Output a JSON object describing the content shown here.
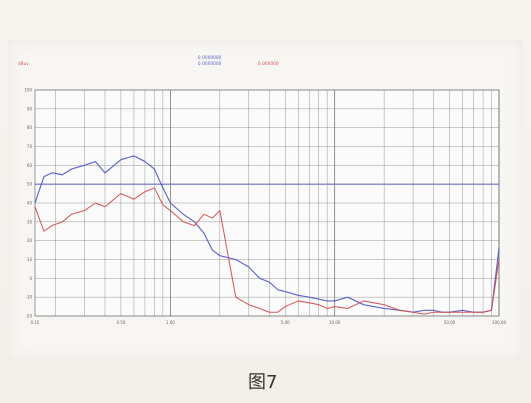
{
  "caption": "图7",
  "legend": {
    "unit": "dBuv",
    "entries": [
      "0.0000000",
      "0.0000000",
      "0.000000"
    ]
  },
  "colors": {
    "blue": "#4f58c8",
    "red": "#d24b4b",
    "grid": "#6f6f6f",
    "reference": "#6b6fc8"
  },
  "chart_data": {
    "type": "line",
    "title": "",
    "xlabel": "",
    "ylabel": "",
    "x_scale": "log",
    "xlim": [
      0.15,
      100
    ],
    "ylim": [
      -20,
      100
    ],
    "x_ticks": [
      "0.15",
      "0.50",
      "1.00",
      "5.00",
      "10.00",
      "50.00",
      "100.00"
    ],
    "y_ticks": [
      "100",
      "90",
      "80",
      "70",
      "60",
      "50",
      "40",
      "30",
      "20",
      "10",
      "0",
      "-10",
      "-20"
    ],
    "reference_line": 50,
    "series": [
      {
        "color": "#4f58c8",
        "x": [
          0.15,
          0.17,
          0.19,
          0.22,
          0.25,
          0.3,
          0.35,
          0.4,
          0.5,
          0.6,
          0.7,
          0.8,
          0.9,
          1.0,
          1.2,
          1.4,
          1.6,
          1.8,
          2.0,
          2.5,
          3.0,
          3.5,
          4.0,
          4.5,
          5.0,
          6.0,
          7.0,
          8.0,
          9.0,
          10.0,
          12.0,
          15.0,
          20.0,
          25.0,
          30.0,
          35.0,
          40.0,
          45.0,
          50.0,
          60.0,
          70.0,
          80.0,
          90.0,
          100.0
        ],
        "y": [
          40,
          54,
          56,
          55,
          58,
          60,
          62,
          56,
          63,
          65,
          62,
          58,
          48,
          40,
          34,
          30,
          24,
          15,
          12,
          10,
          6,
          0,
          -2,
          -6,
          -7,
          -9,
          -10,
          -11,
          -12,
          -12,
          -10,
          -14,
          -16,
          -17,
          -18,
          -17,
          -17,
          -18,
          -18,
          -17,
          -18,
          -18,
          -17,
          16
        ]
      },
      {
        "color": "#d24b4b",
        "x": [
          0.15,
          0.17,
          0.19,
          0.22,
          0.25,
          0.3,
          0.35,
          0.4,
          0.5,
          0.6,
          0.7,
          0.8,
          0.9,
          1.0,
          1.2,
          1.4,
          1.6,
          1.8,
          2.0,
          2.5,
          3.0,
          3.5,
          4.0,
          4.5,
          5.0,
          6.0,
          7.0,
          8.0,
          9.0,
          10.0,
          12.0,
          15.0,
          20.0,
          25.0,
          30.0,
          35.0,
          40.0,
          45.0,
          50.0,
          60.0,
          70.0,
          80.0,
          90.0,
          100.0
        ],
        "y": [
          38,
          25,
          28,
          30,
          34,
          36,
          40,
          38,
          45,
          42,
          46,
          48,
          39,
          36,
          30,
          28,
          34,
          32,
          36,
          -10,
          -14,
          -16,
          -18,
          -18,
          -15,
          -12,
          -13,
          -14,
          -16,
          -15,
          -16,
          -12,
          -14,
          -17,
          -18,
          -19,
          -18,
          -18,
          -18,
          -18,
          -18,
          -18,
          -17,
          10
        ]
      }
    ]
  }
}
